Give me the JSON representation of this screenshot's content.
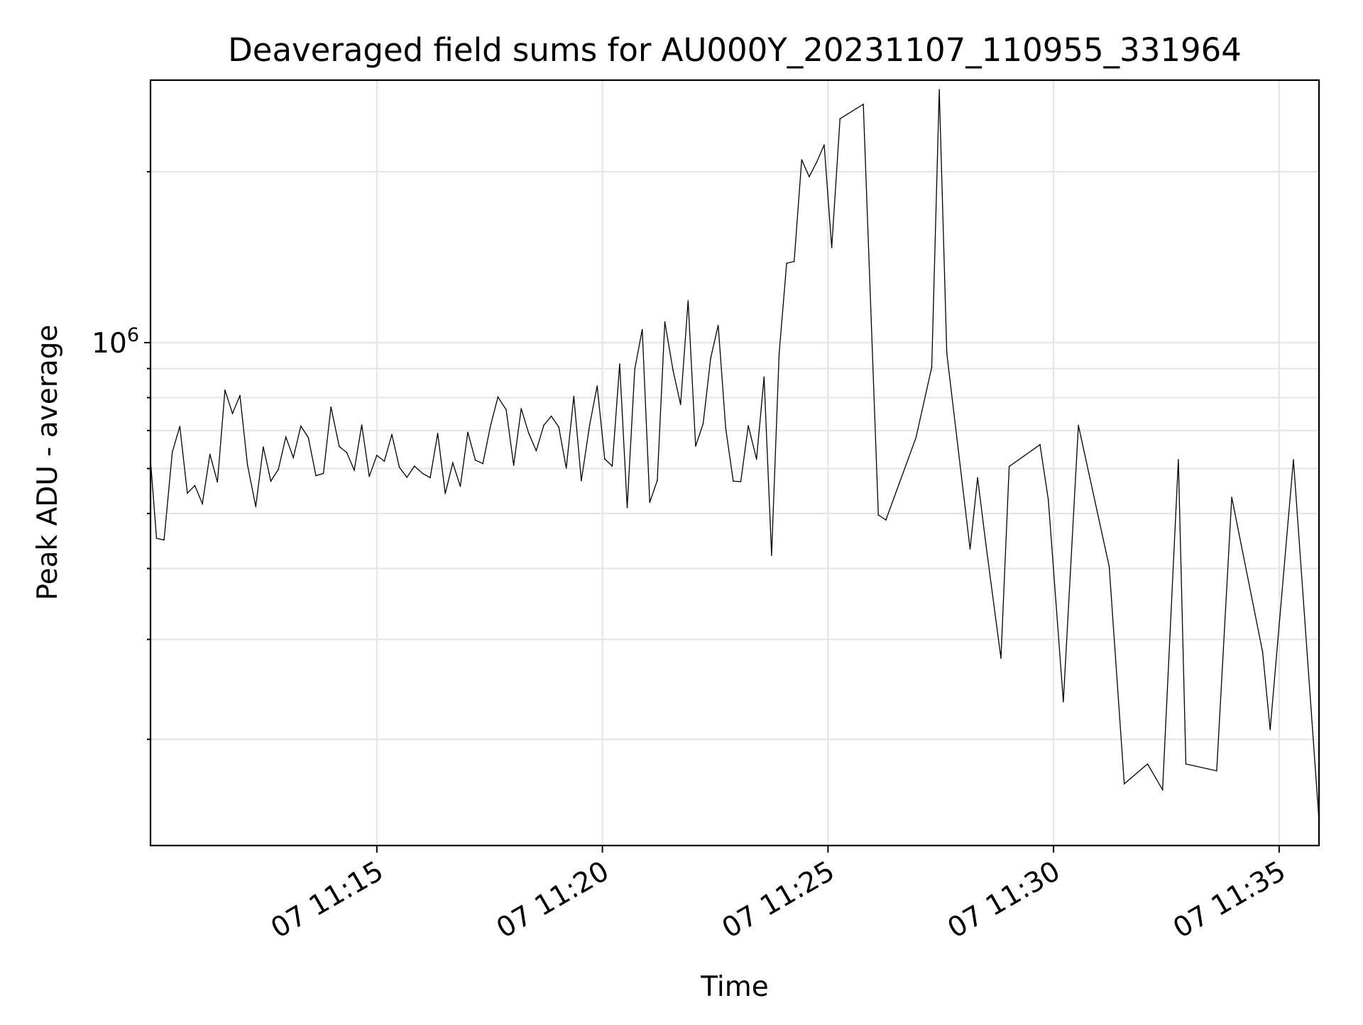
{
  "chart_data": {
    "type": "line",
    "title": "Deaveraged field sums for AU000Y_20231107_110955_331964",
    "xlabel": "Time",
    "ylabel": "Peak ADU - average",
    "yscale": "log",
    "grid": true,
    "x_range": [
      "07 11:09:59",
      "07 11:35:53"
    ],
    "y_range": [
      130000,
      2900000
    ],
    "x_ticks": [
      {
        "value": "07 11:15:00",
        "label": "07 11:15"
      },
      {
        "value": "07 11:20:00",
        "label": "07 11:20"
      },
      {
        "value": "07 11:25:00",
        "label": "07 11:25"
      },
      {
        "value": "07 11:30:00",
        "label": "07 11:30"
      },
      {
        "value": "07 11:35:00",
        "label": "07 11:35"
      }
    ],
    "y_major_ticks": [
      {
        "value": 1000000,
        "base": "10",
        "exponent": "6"
      }
    ],
    "y_minor_ticks": [
      200000,
      300000,
      400000,
      500000,
      600000,
      700000,
      800000,
      900000,
      2000000
    ],
    "series": [
      {
        "color": "#000000",
        "points": [
          [
            "07 11:09:59",
            621000
          ],
          [
            "07 11:10:07",
            452000
          ],
          [
            "07 11:10:17",
            449000
          ],
          [
            "07 11:10:28",
            641000
          ],
          [
            "07 11:10:38",
            712000
          ],
          [
            "07 11:10:48",
            543000
          ],
          [
            "07 11:10:58",
            560000
          ],
          [
            "07 11:11:08",
            520000
          ],
          [
            "07 11:11:18",
            636000
          ],
          [
            "07 11:11:28",
            568000
          ],
          [
            "07 11:11:38",
            825000
          ],
          [
            "07 11:11:48",
            750000
          ],
          [
            "07 11:11:58",
            807000
          ],
          [
            "07 11:12:08",
            609000
          ],
          [
            "07 11:12:19",
            514000
          ],
          [
            "07 11:12:29",
            655000
          ],
          [
            "07 11:12:39",
            570000
          ],
          [
            "07 11:12:49",
            598000
          ],
          [
            "07 11:12:59",
            682000
          ],
          [
            "07 11:13:09",
            627000
          ],
          [
            "07 11:13:19",
            713000
          ],
          [
            "07 11:13:29",
            680000
          ],
          [
            "07 11:13:39",
            583000
          ],
          [
            "07 11:13:49",
            588000
          ],
          [
            "07 11:13:59",
            770000
          ],
          [
            "07 11:14:10",
            656000
          ],
          [
            "07 11:14:20",
            640000
          ],
          [
            "07 11:14:30",
            596000
          ],
          [
            "07 11:14:40",
            716000
          ],
          [
            "07 11:14:50",
            581000
          ],
          [
            "07 11:15:00",
            633000
          ],
          [
            "07 11:15:10",
            618000
          ],
          [
            "07 11:15:20",
            689000
          ],
          [
            "07 11:15:30",
            603000
          ],
          [
            "07 11:15:40",
            579000
          ],
          [
            "07 11:15:50",
            606000
          ],
          [
            "07 11:16:01",
            588000
          ],
          [
            "07 11:16:11",
            578000
          ],
          [
            "07 11:16:21",
            692000
          ],
          [
            "07 11:16:31",
            542000
          ],
          [
            "07 11:16:41",
            614000
          ],
          [
            "07 11:16:51",
            558000
          ],
          [
            "07 11:17:01",
            695000
          ],
          [
            "07 11:17:11",
            621000
          ],
          [
            "07 11:17:21",
            612000
          ],
          [
            "07 11:17:31",
            712000
          ],
          [
            "07 11:17:41",
            802000
          ],
          [
            "07 11:17:52",
            762000
          ],
          [
            "07 11:18:02",
            608000
          ],
          [
            "07 11:18:12",
            765000
          ],
          [
            "07 11:18:22",
            692000
          ],
          [
            "07 11:18:32",
            645000
          ],
          [
            "07 11:18:42",
            715000
          ],
          [
            "07 11:18:52",
            742000
          ],
          [
            "07 11:19:02",
            710000
          ],
          [
            "07 11:19:12",
            601000
          ],
          [
            "07 11:19:22",
            804000
          ],
          [
            "07 11:19:32",
            571000
          ],
          [
            "07 11:19:43",
            716000
          ],
          [
            "07 11:19:53",
            839000
          ],
          [
            "07 11:20:03",
            624000
          ],
          [
            "07 11:20:13",
            606000
          ],
          [
            "07 11:20:23",
            917000
          ],
          [
            "07 11:20:33",
            512000
          ],
          [
            "07 11:20:43",
            897000
          ],
          [
            "07 11:20:53",
            1055000
          ],
          [
            "07 11:21:03",
            523000
          ],
          [
            "07 11:21:13",
            572000
          ],
          [
            "07 11:21:23",
            1088000
          ],
          [
            "07 11:21:34",
            893000
          ],
          [
            "07 11:21:44",
            778000
          ],
          [
            "07 11:21:54",
            1185000
          ],
          [
            "07 11:22:04",
            657000
          ],
          [
            "07 11:22:14",
            720000
          ],
          [
            "07 11:22:24",
            939000
          ],
          [
            "07 11:22:34",
            1073000
          ],
          [
            "07 11:22:44",
            706000
          ],
          [
            "07 11:22:54",
            570000
          ],
          [
            "07 11:23:04",
            569000
          ],
          [
            "07 11:23:14",
            714000
          ],
          [
            "07 11:23:25",
            623000
          ],
          [
            "07 11:23:35",
            870000
          ],
          [
            "07 11:23:45",
            422000
          ],
          [
            "07 11:23:55",
            955000
          ],
          [
            "07 11:24:05",
            1380000
          ],
          [
            "07 11:24:15",
            1390000
          ],
          [
            "07 11:24:25",
            2100000
          ],
          [
            "07 11:24:35",
            1960000
          ],
          [
            "07 11:24:45",
            2080000
          ],
          [
            "07 11:24:55",
            2230000
          ],
          [
            "07 11:25:05",
            1470000
          ],
          [
            "07 11:25:16",
            2480000
          ],
          [
            "07 11:25:47",
            2630000
          ],
          [
            "07 11:26:07",
            497000
          ],
          [
            "07 11:26:17",
            487000
          ],
          [
            "07 11:26:57",
            680000
          ],
          [
            "07 11:27:18",
            905000
          ],
          [
            "07 11:27:28",
            2790000
          ],
          [
            "07 11:27:38",
            958000
          ],
          [
            "07 11:28:09",
            433000
          ],
          [
            "07 11:28:19",
            578000
          ],
          [
            "07 11:28:30",
            441000
          ],
          [
            "07 11:28:50",
            278000
          ],
          [
            "07 11:29:01",
            605000
          ],
          [
            "07 11:29:42",
            661000
          ],
          [
            "07 11:29:53",
            529000
          ],
          [
            "07 11:30:13",
            233000
          ],
          [
            "07 11:30:33",
            715000
          ],
          [
            "07 11:31:14",
            403000
          ],
          [
            "07 11:31:34",
            167000
          ],
          [
            "07 11:32:05",
            181000
          ],
          [
            "07 11:32:25",
            163000
          ],
          [
            "07 11:32:46",
            622000
          ],
          [
            "07 11:32:56",
            181000
          ],
          [
            "07 11:33:37",
            176000
          ],
          [
            "07 11:33:57",
            534000
          ],
          [
            "07 11:34:38",
            285000
          ],
          [
            "07 11:34:48",
            208000
          ],
          [
            "07 11:35:19",
            622000
          ],
          [
            "07 11:35:53",
            144000
          ]
        ]
      }
    ]
  }
}
